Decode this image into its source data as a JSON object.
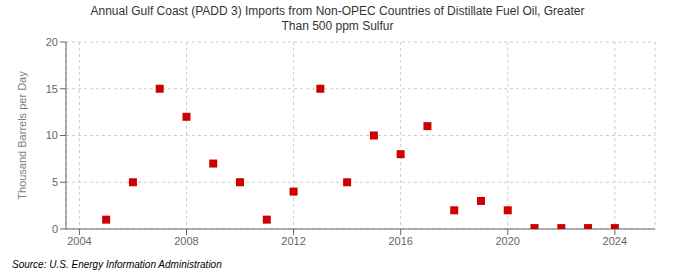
{
  "chart_data": {
    "type": "scatter",
    "title": "Annual Gulf Coast (PADD 3) Imports from Non-OPEC Countries of Distillate Fuel Oil, Greater\nThan 500 ppm Sulfur",
    "ylabel": "Thousand Barrels per Day",
    "annotations": [
      "Source: U.S. Energy Information Administration"
    ],
    "x": [
      2005,
      2006,
      2007,
      2008,
      2009,
      2010,
      2011,
      2012,
      2013,
      2014,
      2015,
      2016,
      2017,
      2018,
      2019,
      2020,
      2021,
      2022,
      2023,
      2024
    ],
    "values": [
      1,
      5,
      15,
      12,
      7,
      5,
      1,
      4,
      15,
      5,
      10,
      8,
      11,
      2,
      3,
      2,
      0.1,
      0.1,
      0.1,
      0.1
    ],
    "color": "#cc0000",
    "marker": "square",
    "xlim": [
      2003.5,
      2025.5
    ],
    "ylim": [
      0,
      20
    ],
    "xticks": [
      2004,
      2008,
      2012,
      2016,
      2020,
      2024
    ],
    "yticks": [
      0,
      5,
      10,
      15,
      20
    ],
    "grid": true
  }
}
